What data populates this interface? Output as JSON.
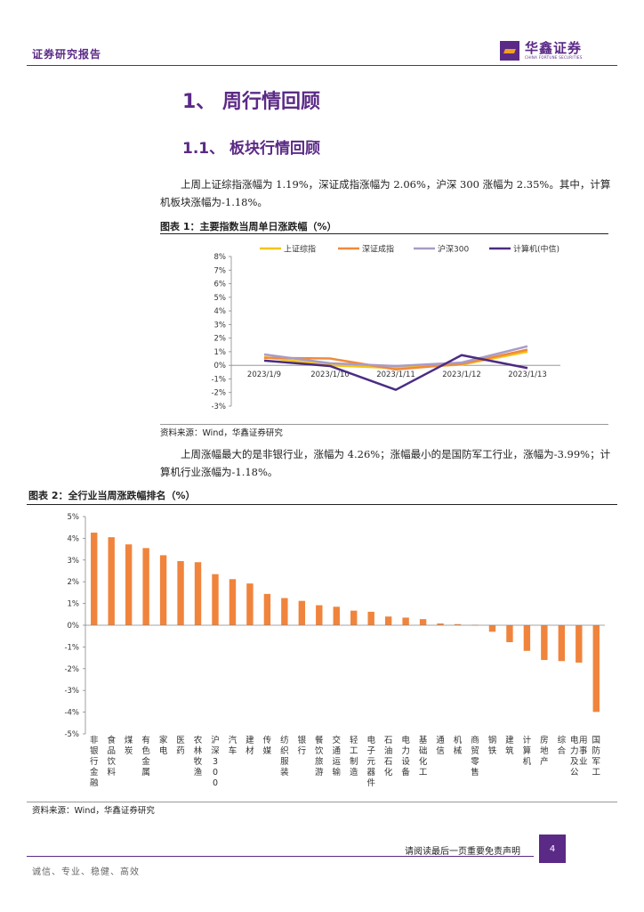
{
  "header": {
    "report_type": "证券研究报告",
    "logo_cn": "华鑫证券",
    "logo_en": "CHINA FORTUNE SECURITIES"
  },
  "section": {
    "h1": "1、 周行情回顾",
    "h2": "1.1、 板块行情回顾",
    "para1": "上周上证综指涨幅为 1.19%，深证成指涨幅为 2.06%，沪深 300 涨幅为 2.35%。其中，计算机板块涨幅为-1.18%。",
    "para2": "上周涨幅最大的是非银行业，涨幅为 4.26%；涨幅最小的是国防军工行业，涨幅为-3.99%；计算机行业涨幅为-1.18%。"
  },
  "figure1": {
    "title": "图表 1：主要指数当周单日涨跌幅（%）",
    "source": "资料来源：Wind，华鑫证券研究"
  },
  "figure2": {
    "title": "图表 2：全行业当周涨跌幅排名（%）",
    "source": "资料来源：Wind，华鑫证券研究"
  },
  "chart_data": [
    {
      "type": "line",
      "title": "图表 1：主要指数当周单日涨跌幅（%）",
      "x": [
        "2023/1/9",
        "2023/1/10",
        "2023/1/11",
        "2023/1/12",
        "2023/1/13"
      ],
      "y_ticks": [
        "8%",
        "7%",
        "6%",
        "5%",
        "4%",
        "3%",
        "2%",
        "1%",
        "0%",
        "-1%",
        "-2%",
        "-3%"
      ],
      "ylim": [
        -3,
        8
      ],
      "series": [
        {
          "name": "上证综指",
          "color": "#f5c518",
          "values": [
            0.6,
            0.0,
            -0.2,
            0.05,
            1.0
          ]
        },
        {
          "name": "深证成指",
          "color": "#f08a3c",
          "values": [
            0.55,
            0.5,
            -0.3,
            0.1,
            1.15
          ]
        },
        {
          "name": "沪深300",
          "color": "#a89cc8",
          "values": [
            0.8,
            0.15,
            -0.05,
            0.2,
            1.4
          ]
        },
        {
          "name": "计算机(中信)",
          "color": "#4b2c82",
          "values": [
            0.35,
            -0.05,
            -1.8,
            0.75,
            -0.2
          ]
        }
      ]
    },
    {
      "type": "bar",
      "title": "图表 2：全行业当周涨跌幅排名（%）",
      "color": "#f0843c",
      "y_ticks": [
        "5%",
        "4%",
        "3%",
        "2%",
        "1%",
        "0%",
        "-1%",
        "-2%",
        "-3%",
        "-4%",
        "-5%"
      ],
      "ylim": [
        -5,
        5
      ],
      "categories": [
        "非银行金融",
        "食品饮料",
        "煤炭",
        "有色金属",
        "家电",
        "医药",
        "农林牧渔",
        "沪深300",
        "汽车",
        "建材",
        "传媒",
        "纺织服装",
        "银行",
        "餐饮旅游",
        "交通运输",
        "轻工制造",
        "电子元器件",
        "石油石化",
        "电力设备",
        "基础化工",
        "通信",
        "机械",
        "商贸零售",
        "钢铁",
        "建筑",
        "计算机",
        "房地产",
        "综合",
        "电力及公用事业",
        "国防军工"
      ],
      "values": [
        4.26,
        4.05,
        3.72,
        3.55,
        3.22,
        2.95,
        2.9,
        2.35,
        2.12,
        1.92,
        1.44,
        1.25,
        1.12,
        0.92,
        0.85,
        0.67,
        0.62,
        0.4,
        0.35,
        0.28,
        0.08,
        0.05,
        0.02,
        -0.3,
        -0.78,
        -1.18,
        -1.6,
        -1.65,
        -1.72,
        -3.99
      ]
    }
  ],
  "footer": {
    "note": "请阅读最后一页重要免责声明",
    "page": "4",
    "motto": "诚信、专业、稳健、高效"
  }
}
